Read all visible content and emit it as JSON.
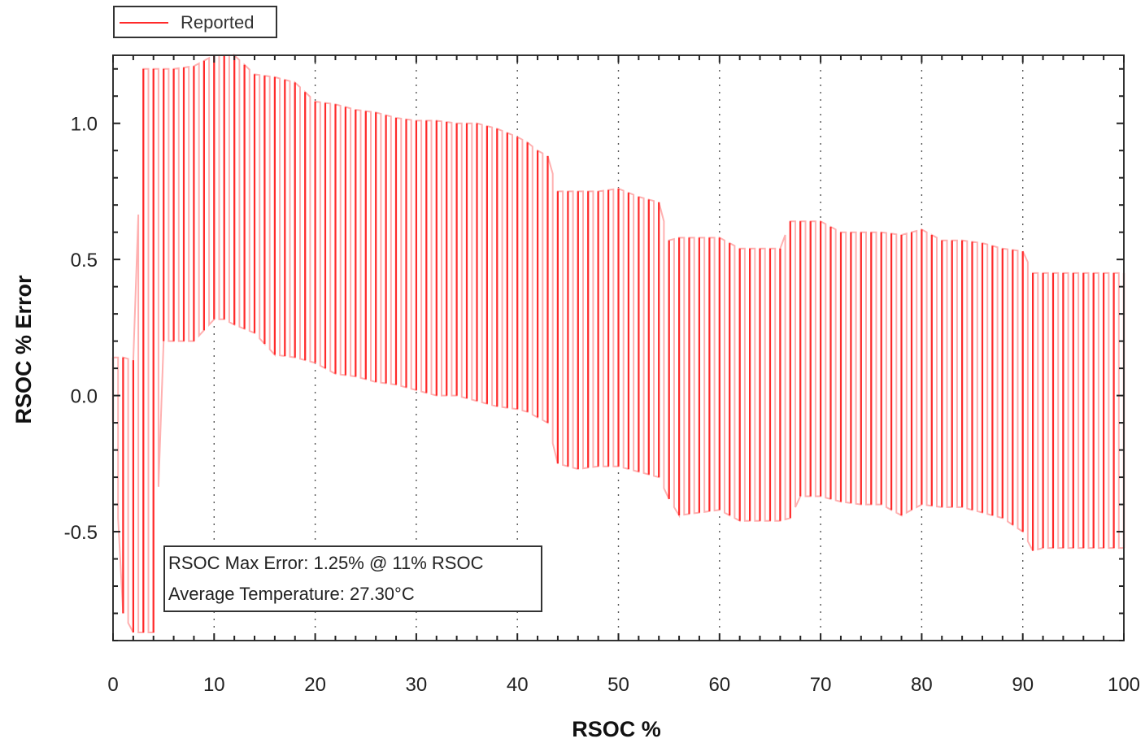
{
  "chart_data": {
    "type": "line",
    "title": "",
    "xlabel": "RSOC %",
    "ylabel": "RSOC % Error",
    "xlim": [
      0,
      100
    ],
    "ylim": [
      -0.9,
      1.25
    ],
    "x_ticks": [
      0,
      10,
      20,
      30,
      40,
      50,
      60,
      70,
      80,
      90,
      100
    ],
    "y_ticks": [
      -0.5,
      0.0,
      0.5,
      1.0
    ],
    "y_tick_labels": [
      "-0.5",
      "0.0",
      "0.5",
      "1.0"
    ],
    "x_gridlines": "dotted",
    "legend": {
      "position": "top-left",
      "entries": [
        "Reported"
      ]
    },
    "annotations": [
      "RSOC Max Error: 1.25% @ 11% RSOC",
      "Average Temperature: 27.30°C"
    ],
    "series": [
      {
        "name": "Reported",
        "color": "#ff2a2a",
        "envelope": {
          "x": [
            0,
            1,
            2,
            3,
            4,
            5,
            6,
            8,
            10,
            11,
            12,
            14,
            16,
            18,
            20,
            22,
            24,
            26,
            28,
            30,
            32,
            34,
            36,
            38,
            40,
            41,
            42,
            43,
            44,
            46,
            48,
            50,
            52,
            54,
            55,
            56,
            58,
            60,
            62,
            64,
            66,
            67,
            68,
            70,
            72,
            74,
            76,
            78,
            80,
            82,
            84,
            86,
            88,
            90,
            91,
            92,
            94,
            96,
            98,
            100
          ],
          "upper": [
            0.14,
            0.14,
            0.13,
            1.2,
            1.2,
            1.2,
            1.2,
            1.21,
            1.25,
            1.25,
            1.25,
            1.18,
            1.17,
            1.15,
            1.08,
            1.07,
            1.05,
            1.04,
            1.02,
            1.01,
            1.01,
            1.0,
            1.0,
            0.98,
            0.95,
            0.93,
            0.9,
            0.88,
            0.75,
            0.75,
            0.75,
            0.76,
            0.73,
            0.71,
            0.57,
            0.58,
            0.58,
            0.58,
            0.54,
            0.54,
            0.54,
            0.64,
            0.64,
            0.64,
            0.6,
            0.6,
            0.6,
            0.59,
            0.61,
            0.57,
            0.57,
            0.56,
            0.54,
            0.53,
            0.45,
            0.45,
            0.45,
            0.45,
            0.45,
            0.45
          ],
          "lower": [
            -0.1,
            -0.8,
            -0.87,
            -0.87,
            -0.87,
            0.2,
            0.2,
            0.2,
            0.28,
            0.28,
            0.26,
            0.23,
            0.15,
            0.14,
            0.12,
            0.08,
            0.07,
            0.05,
            0.04,
            0.02,
            0.0,
            0.0,
            -0.02,
            -0.04,
            -0.05,
            -0.06,
            -0.08,
            -0.1,
            -0.25,
            -0.27,
            -0.26,
            -0.26,
            -0.28,
            -0.3,
            -0.38,
            -0.44,
            -0.43,
            -0.42,
            -0.46,
            -0.46,
            -0.46,
            -0.45,
            -0.37,
            -0.37,
            -0.39,
            -0.4,
            -0.4,
            -0.44,
            -0.4,
            -0.41,
            -0.41,
            -0.43,
            -0.45,
            -0.5,
            -0.57,
            -0.56,
            -0.56,
            -0.56,
            -0.56,
            -0.56
          ]
        }
      }
    ]
  }
}
